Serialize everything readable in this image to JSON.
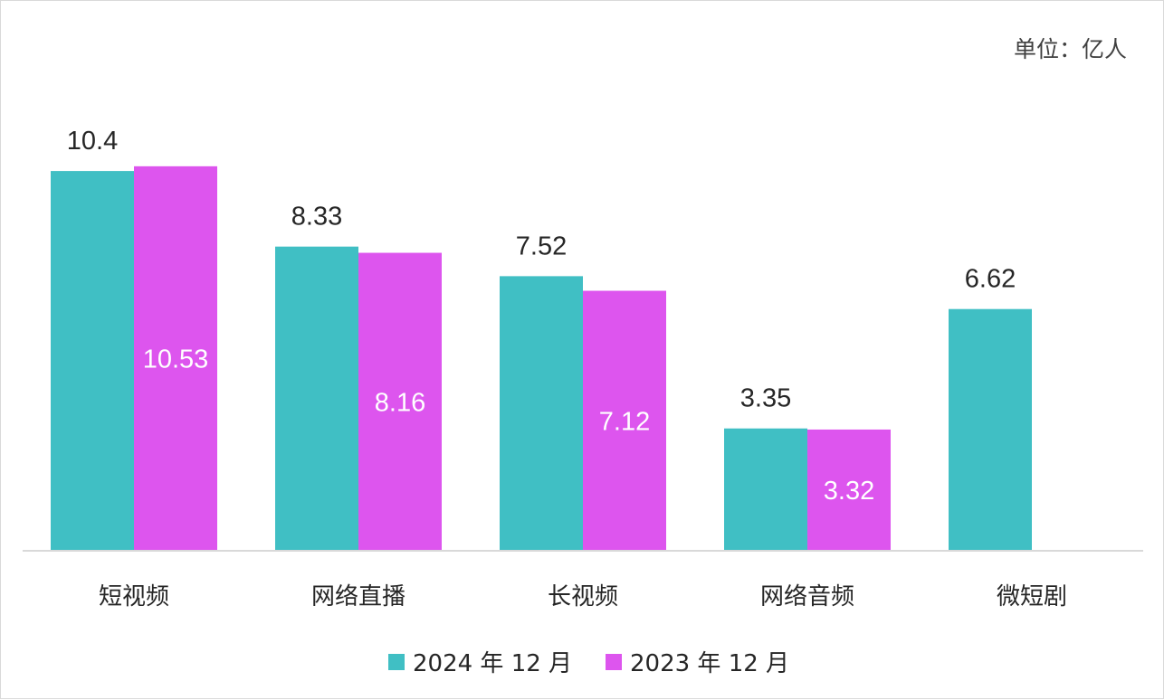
{
  "chart_data": {
    "type": "bar",
    "unit_label": "单位：亿人",
    "categories": [
      "短视频",
      "网络直播",
      "长视频",
      "网络音频",
      "微短剧"
    ],
    "series": [
      {
        "name": "2024 年 12 月",
        "values": [
          10.4,
          8.33,
          7.52,
          3.35,
          6.62
        ],
        "color": "#40bfc4",
        "label_position": "outside",
        "labels": [
          "10.4",
          "8.33",
          "7.52",
          "3.35",
          "6.62"
        ]
      },
      {
        "name": "2023 年 12 月",
        "values": [
          10.53,
          8.16,
          7.12,
          3.32,
          null
        ],
        "color": "#dd55ee",
        "label_position": "inside",
        "labels": [
          "10.53",
          "8.16",
          "7.12",
          "3.32",
          null
        ]
      }
    ],
    "ylim": [
      0,
      13.3
    ],
    "grid": false,
    "legend_position": "bottom"
  }
}
